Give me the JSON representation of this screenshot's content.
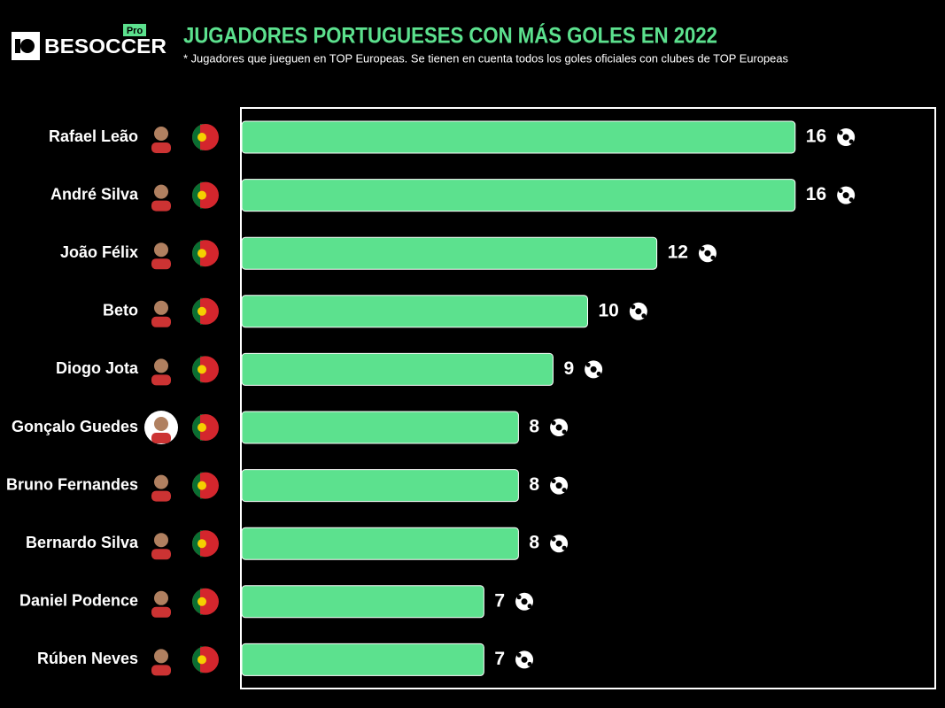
{
  "chart_data": {
    "type": "bar",
    "orientation": "horizontal",
    "brand": "BESOCCER",
    "brand_badge": "Pro",
    "title": "JUGADORES PORTUGUESES CON MÁS GOLES EN 2022",
    "subtitle": "* Jugadores que jueguen en TOP Europeas. Se tienen en cuenta todos los goles oficiales con clubes de TOP Europeas",
    "categories": [
      "Rafael Leão",
      "André Silva",
      "João Félix",
      "Beto",
      "Diogo Jota",
      "Gonçalo Guedes",
      "Bruno Fernandes",
      "Bernardo Silva",
      "Daniel Podence",
      "Rúben Neves"
    ],
    "values": [
      16,
      16,
      12,
      10,
      9,
      8,
      8,
      8,
      7,
      7
    ],
    "color": "#5ce18e",
    "xlim": [
      0,
      20
    ]
  }
}
